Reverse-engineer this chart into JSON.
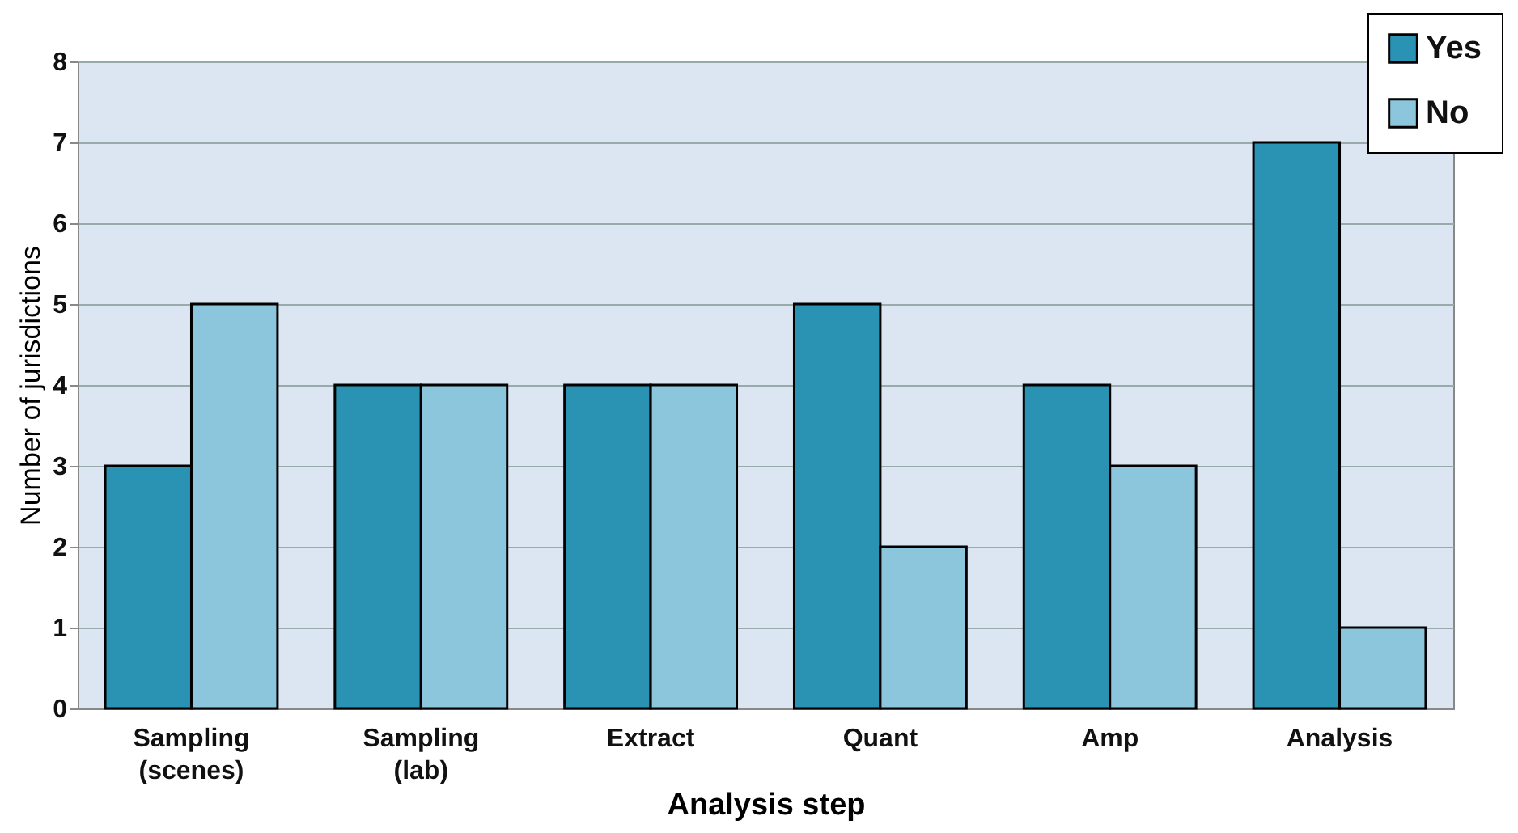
{
  "chart_data": {
    "type": "bar",
    "xlabel": "Analysis step",
    "ylabel": "Number of jurisdictions",
    "categories": [
      "Sampling (scenes)",
      "Sampling (lab)",
      "Extract",
      "Quant",
      "Amp",
      "Analysis"
    ],
    "series": [
      {
        "name": "Yes",
        "color": "#2a93b3",
        "values": [
          3,
          4,
          4,
          5,
          4,
          7
        ]
      },
      {
        "name": "No",
        "color": "#8cc6dc",
        "values": [
          5,
          4,
          4,
          2,
          3,
          1
        ]
      }
    ],
    "ylim": [
      0,
      8
    ],
    "yticks": [
      0,
      1,
      2,
      3,
      4,
      5,
      6,
      7,
      8
    ],
    "grid": "y",
    "legend": "top right"
  }
}
